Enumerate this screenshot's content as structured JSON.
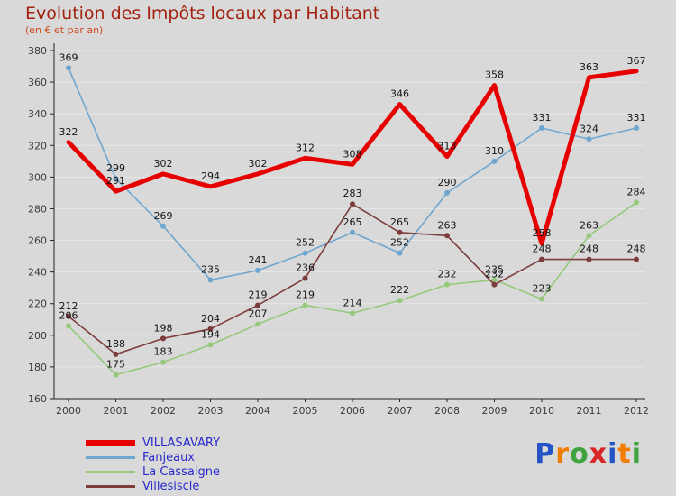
{
  "header": {
    "title": "Evolution des Impôts locaux par Habitant",
    "subtitle": "(en € et par an)"
  },
  "chart_data": {
    "type": "line",
    "title": "Evolution des Impôts locaux par Habitant",
    "subtitle": "(en € et par an)",
    "x": [
      "2000",
      "2001",
      "2002",
      "2003",
      "2004",
      "2005",
      "2006",
      "2007",
      "2008",
      "2009",
      "2010",
      "2011",
      "2012"
    ],
    "ylim": [
      160,
      380
    ],
    "ytick_step": 20,
    "yticks": [
      160,
      180,
      200,
      220,
      240,
      260,
      280,
      300,
      320,
      340,
      360,
      380
    ],
    "grid": true,
    "legend_position": "bottom-left",
    "data_labels": true,
    "series": [
      {
        "name": "VILLASAVARY",
        "color": "#e60000",
        "width": 5,
        "marker": false,
        "values": [
          322,
          291,
          302,
          294,
          302,
          312,
          308,
          346,
          313,
          358,
          258,
          363,
          367
        ]
      },
      {
        "name": "Fanjeaux",
        "color": "#6fa6cf",
        "width": 1.6,
        "marker": true,
        "values": [
          369,
          299,
          269,
          235,
          241,
          252,
          265,
          252,
          290,
          310,
          331,
          324,
          331
        ]
      },
      {
        "name": "La Cassaigne",
        "color": "#96c97b",
        "width": 1.6,
        "marker": true,
        "values": [
          206,
          175,
          183,
          194,
          207,
          219,
          214,
          222,
          232,
          235,
          223,
          263,
          284
        ]
      },
      {
        "name": "Villesiscle",
        "color": "#7d3c3c",
        "width": 1.6,
        "marker": true,
        "values": [
          212,
          188,
          198,
          204,
          219,
          236,
          283,
          265,
          263,
          232,
          248,
          248,
          248
        ]
      }
    ],
    "label_color": "#141414",
    "axis_color": "#222222",
    "grid_color": "#e7e7e7",
    "background_color": "#d9d9d9"
  },
  "logo": {
    "text": "Proxiti",
    "letters": [
      {
        "ch": "P",
        "color": "#2353c4"
      },
      {
        "ch": "r",
        "color": "#f07d00"
      },
      {
        "ch": "o",
        "color": "#3fa33f"
      },
      {
        "ch": "x",
        "color": "#d92626"
      },
      {
        "ch": "i",
        "color": "#2353c4"
      },
      {
        "ch": "t",
        "color": "#f07d00"
      },
      {
        "ch": "i",
        "color": "#3fa33f"
      }
    ]
  }
}
